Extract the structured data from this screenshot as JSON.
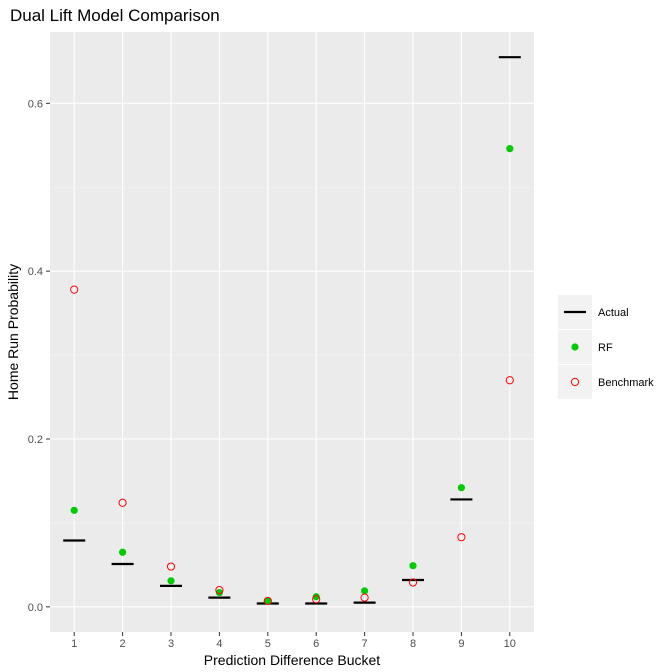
{
  "chart_data": {
    "type": "scatter",
    "title": "Dual Lift Model Comparison",
    "xlabel": "Prediction Difference Bucket",
    "ylabel": "Home Run Probability",
    "categories": [
      "1",
      "2",
      "3",
      "4",
      "5",
      "6",
      "7",
      "8",
      "9",
      "10"
    ],
    "ylim": [
      -0.03,
      0.685
    ],
    "y_ticks": [
      0.0,
      0.2,
      0.4,
      0.6
    ],
    "y_tick_labels": [
      "0.0",
      "0.2",
      "0.4",
      "0.6"
    ],
    "grid": true,
    "legend_position": "right",
    "series": [
      {
        "name": "Actual",
        "marker": "horizontal-line",
        "color": "#000000",
        "values": [
          0.079,
          0.051,
          0.025,
          0.011,
          0.004,
          0.004,
          0.005,
          0.032,
          0.128,
          0.655
        ]
      },
      {
        "name": "RF",
        "marker": "filled-circle",
        "color": "#00cc00",
        "values": [
          0.115,
          0.065,
          0.031,
          0.017,
          0.007,
          0.012,
          0.019,
          0.049,
          0.142,
          0.546
        ]
      },
      {
        "name": "Benchmark",
        "marker": "open-circle",
        "color": "#ff0000",
        "values": [
          0.378,
          0.124,
          0.048,
          0.02,
          0.007,
          0.009,
          0.011,
          0.029,
          0.083,
          0.27
        ]
      }
    ]
  }
}
